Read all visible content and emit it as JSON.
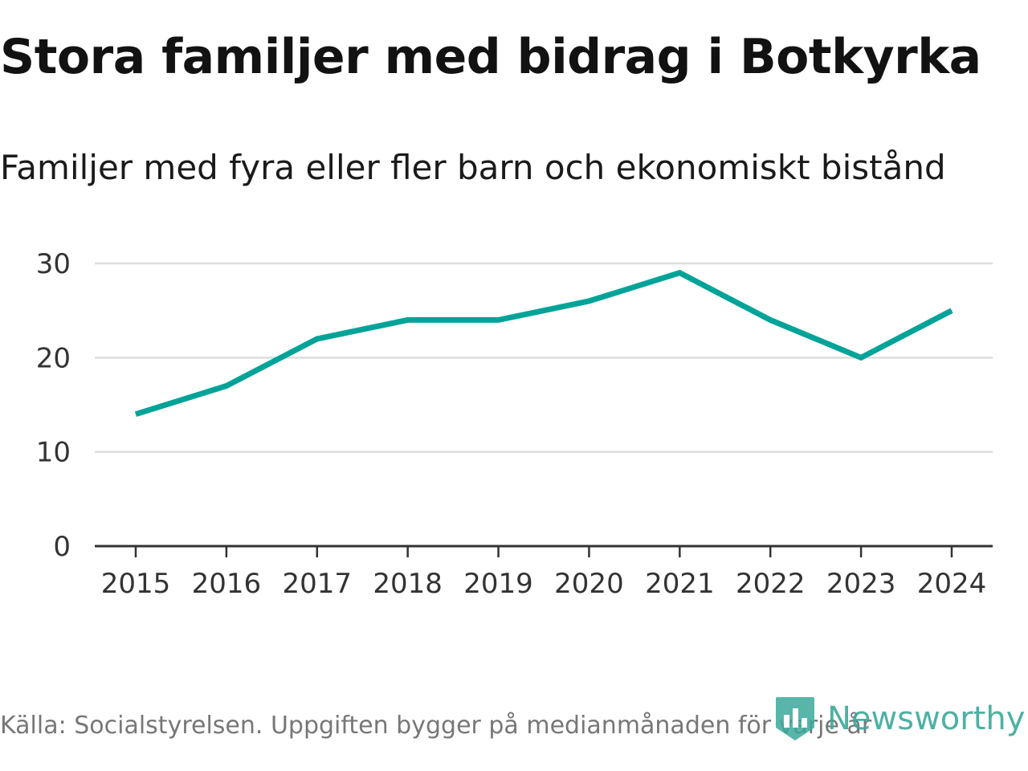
{
  "chart_data": {
    "type": "line",
    "title": "Stora familjer med bidrag i Botkyrka",
    "subtitle": "Familjer med fyra eller fler barn och ekonomiskt bistånd",
    "x": [
      "2015",
      "2016",
      "2017",
      "2018",
      "2019",
      "2020",
      "2021",
      "2022",
      "2023",
      "2024"
    ],
    "series": [
      {
        "name": "Familjer med fyra eller fler barn och ekonomiskt bistånd",
        "values": [
          14,
          17,
          22,
          24,
          24,
          26,
          29,
          24,
          20,
          25
        ]
      }
    ],
    "yticks": [
      0,
      10,
      20,
      30
    ],
    "ylim": [
      0,
      30
    ],
    "xlabel": "",
    "ylabel": "",
    "grid": true,
    "line_color": "#00a398"
  },
  "footer": {
    "source": "Källa: Socialstyrelsen. Uppgiften bygger på medianmånaden för varje år",
    "brand": "Newsworthy"
  },
  "colors": {
    "accent": "#00a398",
    "brand": "#3aa99a",
    "grid": "#dddddd",
    "axis": "#333333"
  }
}
